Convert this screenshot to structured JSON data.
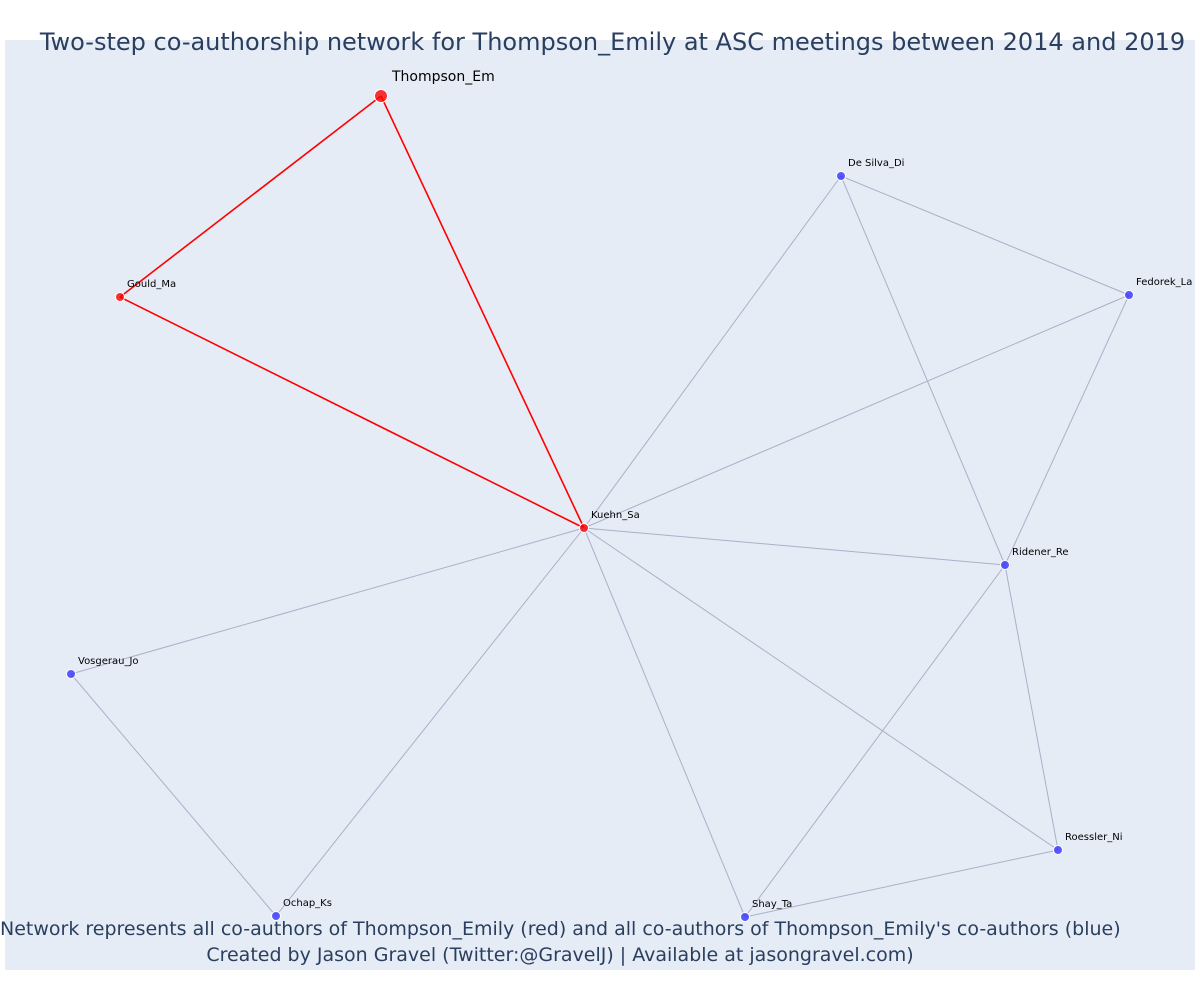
{
  "title": "Two-step co-authorship network for Thompson_Emily at ASC meetings between 2014 and 2019",
  "captions": {
    "line1": "Network represents all co-authors of Thompson_Emily (red) and all co-authors of Thompson_Emily's co-authors (blue)",
    "line2": "Created by Jason Gravel (Twitter:@GravelJ) | Available at jasongravel.com)"
  },
  "colors": {
    "background": "#e5ecf6",
    "text": "#2a3f5f",
    "focal": "#ff0000",
    "first_step": "#ff0000",
    "second_step": "#3333ff",
    "edge_second": "#aab0c8",
    "edge_first": "#ff0000"
  },
  "nodes": [
    {
      "id": "Thompson_Em",
      "group": "focal"
    },
    {
      "id": "Gould_Ma",
      "group": "first_step"
    },
    {
      "id": "Kuehn_Sa",
      "group": "first_step"
    },
    {
      "id": "De Silva_Di",
      "group": "second_step"
    },
    {
      "id": "Fedorek_La",
      "group": "second_step"
    },
    {
      "id": "Ridener_Re",
      "group": "second_step"
    },
    {
      "id": "Vosgerau_Jo",
      "group": "second_step"
    },
    {
      "id": "Ochap_Ks",
      "group": "second_step"
    },
    {
      "id": "Shay_Ta",
      "group": "second_step"
    },
    {
      "id": "Roessler_Ni",
      "group": "second_step"
    }
  ],
  "edges": [
    {
      "source": "Thompson_Em",
      "target": "Gould_Ma",
      "step": "first"
    },
    {
      "source": "Thompson_Em",
      "target": "Kuehn_Sa",
      "step": "first"
    },
    {
      "source": "Gould_Ma",
      "target": "Kuehn_Sa",
      "step": "first"
    },
    {
      "source": "Kuehn_Sa",
      "target": "De Silva_Di",
      "step": "second"
    },
    {
      "source": "Kuehn_Sa",
      "target": "Fedorek_La",
      "step": "second"
    },
    {
      "source": "Kuehn_Sa",
      "target": "Ridener_Re",
      "step": "second"
    },
    {
      "source": "Kuehn_Sa",
      "target": "Vosgerau_Jo",
      "step": "second"
    },
    {
      "source": "Kuehn_Sa",
      "target": "Ochap_Ks",
      "step": "second"
    },
    {
      "source": "Kuehn_Sa",
      "target": "Shay_Ta",
      "step": "second"
    },
    {
      "source": "Kuehn_Sa",
      "target": "Roessler_Ni",
      "step": "second"
    },
    {
      "source": "De Silva_Di",
      "target": "Fedorek_La",
      "step": "second"
    },
    {
      "source": "De Silva_Di",
      "target": "Ridener_Re",
      "step": "second"
    },
    {
      "source": "Fedorek_La",
      "target": "Ridener_Re",
      "step": "second"
    },
    {
      "source": "Ridener_Re",
      "target": "Shay_Ta",
      "step": "second"
    },
    {
      "source": "Ridener_Re",
      "target": "Roessler_Ni",
      "step": "second"
    },
    {
      "source": "Shay_Ta",
      "target": "Roessler_Ni",
      "step": "second"
    },
    {
      "source": "Vosgerau_Jo",
      "target": "Ochap_Ks",
      "step": "second"
    }
  ]
}
